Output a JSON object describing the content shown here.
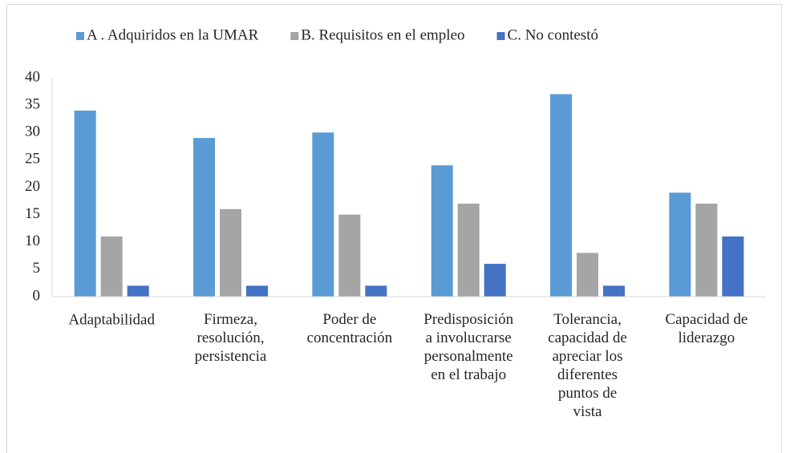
{
  "chart_data": {
    "type": "bar",
    "categories": [
      "Adaptabilidad",
      "Firmeza,\nresolución,\npersistencia",
      "Poder de\nconcentración",
      "Predisposición\na involucrarse\npersonalmente\nen el trabajo",
      "Tolerancia,\ncapacidad de\napreciar los\ndiferentes\npuntos de\nvista",
      "Capacidad de\nliderazgo"
    ],
    "series": [
      {
        "name": "A . Adquiridos en la UMAR",
        "color": "#5b9bd5",
        "values": [
          34,
          29,
          30,
          24,
          37,
          19
        ]
      },
      {
        "name": "B. Requisitos en el empleo",
        "color": "#a5a5a5",
        "values": [
          11,
          16,
          15,
          17,
          8,
          17
        ]
      },
      {
        "name": "C. No contestó",
        "color": "#4472c4",
        "values": [
          2,
          2,
          2,
          6,
          2,
          11
        ]
      }
    ],
    "ylim": [
      0,
      40
    ],
    "yticks": [
      0,
      5,
      10,
      15,
      20,
      25,
      30,
      35,
      40
    ],
    "legend": "top"
  }
}
